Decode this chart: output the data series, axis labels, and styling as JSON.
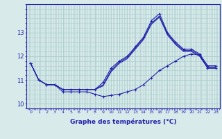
{
  "hours": [
    0,
    1,
    2,
    3,
    4,
    5,
    6,
    7,
    8,
    9,
    10,
    11,
    12,
    13,
    14,
    15,
    16,
    17,
    18,
    19,
    20,
    21,
    22,
    23
  ],
  "temp_top": [
    11.7,
    11.0,
    10.8,
    10.8,
    10.6,
    10.6,
    10.6,
    10.6,
    10.6,
    10.9,
    11.5,
    11.8,
    12.0,
    12.4,
    12.8,
    13.5,
    13.8,
    13.0,
    12.6,
    12.3,
    12.3,
    12.1,
    11.6,
    11.6
  ],
  "temp_mid1": [
    11.7,
    11.0,
    10.8,
    10.8,
    10.6,
    10.6,
    10.6,
    10.6,
    10.6,
    10.8,
    11.4,
    11.75,
    11.95,
    12.35,
    12.75,
    13.4,
    13.7,
    12.95,
    12.55,
    12.25,
    12.25,
    12.05,
    11.55,
    11.55
  ],
  "temp_mid2": [
    11.7,
    11.0,
    10.8,
    10.8,
    10.6,
    10.6,
    10.6,
    10.6,
    10.6,
    10.75,
    11.35,
    11.7,
    11.9,
    12.3,
    12.7,
    13.35,
    13.65,
    12.9,
    12.5,
    12.2,
    12.2,
    12.0,
    11.5,
    11.5
  ],
  "temp_low": [
    11.7,
    11.0,
    10.8,
    10.8,
    10.5,
    10.5,
    10.5,
    10.5,
    10.4,
    10.3,
    10.35,
    10.4,
    10.5,
    10.6,
    10.8,
    11.1,
    11.4,
    11.6,
    11.8,
    12.0,
    12.1,
    12.05,
    11.5,
    11.5
  ],
  "bg_color": "#d8eaea",
  "grid_color": "#aacccc",
  "line_color": "#2222aa",
  "xlabel": "Graphe des températures (°C)",
  "ylim": [
    9.8,
    14.2
  ],
  "yticks": [
    10,
    11,
    12,
    13
  ],
  "xticks": [
    0,
    1,
    2,
    3,
    4,
    5,
    6,
    7,
    8,
    9,
    10,
    11,
    12,
    13,
    14,
    15,
    16,
    17,
    18,
    19,
    20,
    21,
    22,
    23
  ]
}
